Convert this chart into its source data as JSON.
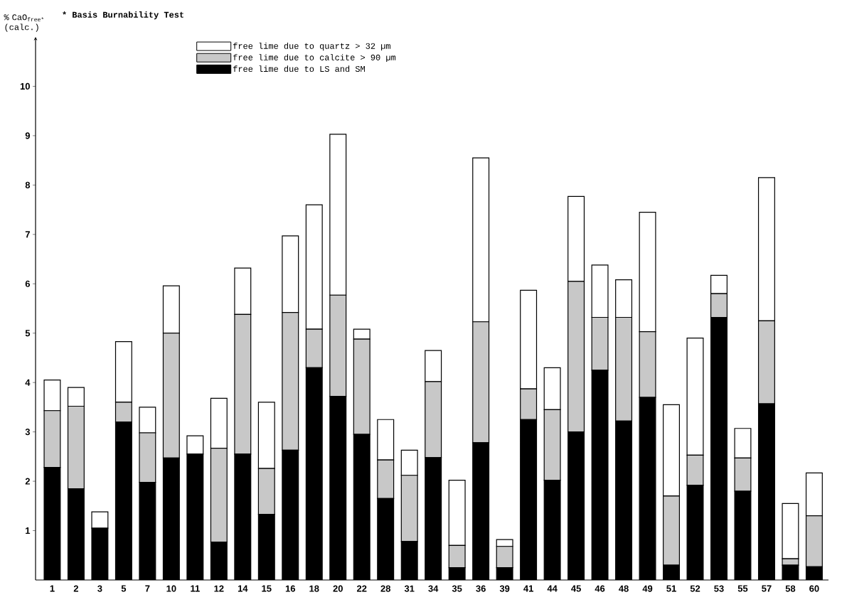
{
  "chart_data": {
    "type": "bar",
    "stacked": true,
    "title": "* Basis Burnability Test",
    "ylabel": "% CaO$_{free*}$ (calc.)",
    "categories": [
      "1",
      "2",
      "3",
      "5",
      "7",
      "10",
      "11",
      "12",
      "14",
      "15",
      "16",
      "18",
      "20",
      "22",
      "28",
      "31",
      "34",
      "35",
      "36",
      "39",
      "41",
      "44",
      "45",
      "46",
      "48",
      "49",
      "51",
      "52",
      "53",
      "55",
      "57",
      "58",
      "60"
    ],
    "series": [
      {
        "name": "free lime due to LS and SM",
        "color": "#000000",
        "values": [
          2.28,
          1.85,
          1.05,
          3.2,
          1.98,
          2.47,
          2.55,
          0.77,
          2.55,
          1.33,
          2.63,
          4.3,
          3.72,
          2.95,
          1.65,
          0.78,
          2.48,
          0.25,
          2.78,
          0.25,
          3.25,
          2.02,
          3.0,
          4.25,
          3.22,
          3.7,
          0.3,
          1.92,
          5.32,
          1.8,
          3.57,
          0.3,
          0.27
        ]
      },
      {
        "name": "free lime due to calcite > 90 µm",
        "color": "#c8c8c8",
        "values": [
          1.15,
          1.67,
          0,
          0.4,
          1.0,
          2.53,
          0,
          1.9,
          2.83,
          0.93,
          2.79,
          0.78,
          2.05,
          1.93,
          0.78,
          1.34,
          1.54,
          0.45,
          2.45,
          0.43,
          0.62,
          1.43,
          3.05,
          1.07,
          2.1,
          1.33,
          1.4,
          0.61,
          0.48,
          0.67,
          1.68,
          0.13,
          1.03
        ]
      },
      {
        "name": "free lime due to quartz > 32 µm",
        "color": "#ffffff",
        "values": [
          0.62,
          0.38,
          0.33,
          1.23,
          0.52,
          0.96,
          0.37,
          1.01,
          0.94,
          1.34,
          1.55,
          2.52,
          3.26,
          0.2,
          0.82,
          0.51,
          0.63,
          1.32,
          3.32,
          0.14,
          2.0,
          0.85,
          1.72,
          1.06,
          0.76,
          2.42,
          1.85,
          2.37,
          0.37,
          0.6,
          2.9,
          1.12,
          0.87
        ]
      }
    ],
    "ylim": [
      0,
      11
    ],
    "yticks": [
      1,
      2,
      3,
      4,
      5,
      6,
      7,
      8,
      9,
      10
    ],
    "legend": "top"
  }
}
